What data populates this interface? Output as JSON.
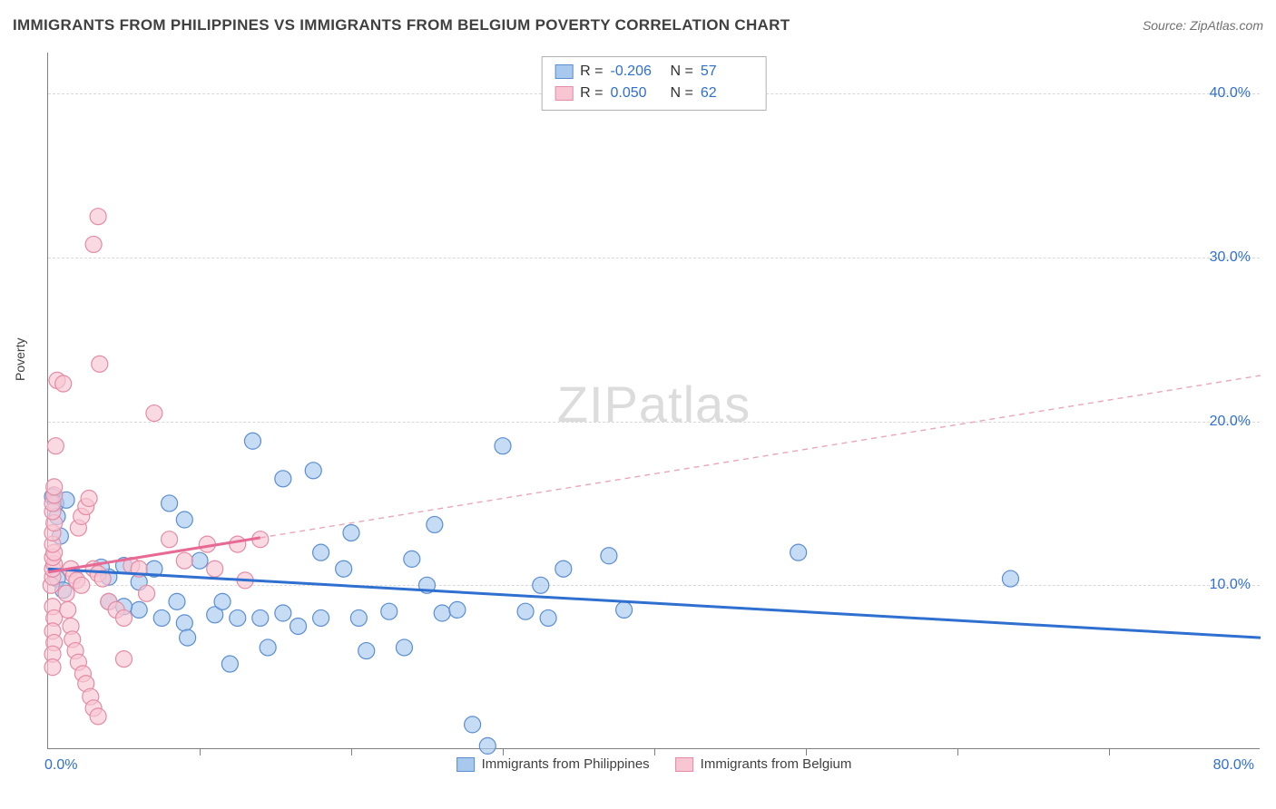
{
  "title": "IMMIGRANTS FROM PHILIPPINES VS IMMIGRANTS FROM BELGIUM POVERTY CORRELATION CHART",
  "source": "Source: ZipAtlas.com",
  "ylabel": "Poverty",
  "watermark_a": "ZIP",
  "watermark_b": "atlas",
  "chart": {
    "type": "scatter",
    "xlim": [
      0,
      80
    ],
    "ylim": [
      0,
      42.5
    ],
    "x_tick_step": 10,
    "y_tick_step": 10,
    "y_tick_min": 10,
    "y_tick_max": 40,
    "xmin_label": "0.0%",
    "xmax_label": "80.0%",
    "marker_radius": 9,
    "background_color": "#ffffff",
    "grid_color": "#d8d8d8",
    "axis_color": "#808080",
    "text_color": "#404040",
    "accent_color": "#2f6fd0",
    "series": [
      {
        "name": "Immigrants from Philippines",
        "color_fill": "#a8c8ee",
        "color_stroke": "#5b8ed1",
        "R": "-0.206",
        "N": "57",
        "trend": {
          "x1": 0,
          "y1": 11.0,
          "x2": 80,
          "y2": 6.8,
          "solid_to_x": 80
        },
        "points": [
          [
            0.3,
            15.4
          ],
          [
            0.5,
            15.0
          ],
          [
            0.6,
            14.2
          ],
          [
            0.8,
            13.0
          ],
          [
            0.6,
            10.4
          ],
          [
            1.0,
            9.7
          ],
          [
            1.2,
            15.2
          ],
          [
            13.5,
            18.8
          ],
          [
            15.5,
            16.5
          ],
          [
            17.5,
            17.0
          ],
          [
            8.0,
            15.0
          ],
          [
            9.0,
            14.0
          ],
          [
            10.0,
            11.5
          ],
          [
            4.0,
            10.5
          ],
          [
            5.0,
            11.2
          ],
          [
            6.0,
            10.2
          ],
          [
            7.0,
            11.0
          ],
          [
            3.5,
            11.1
          ],
          [
            8.5,
            9.0
          ],
          [
            9.0,
            7.7
          ],
          [
            9.2,
            6.8
          ],
          [
            11.0,
            8.2
          ],
          [
            11.5,
            9.0
          ],
          [
            12.5,
            8.0
          ],
          [
            14.0,
            8.0
          ],
          [
            14.5,
            6.2
          ],
          [
            15.5,
            8.3
          ],
          [
            16.5,
            7.5
          ],
          [
            18.0,
            8.0
          ],
          [
            18.0,
            12.0
          ],
          [
            19.5,
            11.0
          ],
          [
            20.0,
            13.2
          ],
          [
            20.5,
            8.0
          ],
          [
            21.0,
            6.0
          ],
          [
            22.5,
            8.4
          ],
          [
            23.5,
            6.2
          ],
          [
            24.0,
            11.6
          ],
          [
            25.0,
            10.0
          ],
          [
            25.5,
            13.7
          ],
          [
            26.0,
            8.3
          ],
          [
            27.0,
            8.5
          ],
          [
            28.0,
            1.5
          ],
          [
            29.0,
            0.2
          ],
          [
            30.0,
            18.5
          ],
          [
            31.5,
            8.4
          ],
          [
            32.5,
            10.0
          ],
          [
            33.0,
            8.0
          ],
          [
            34.0,
            11.0
          ],
          [
            37.0,
            11.8
          ],
          [
            38.0,
            8.5
          ],
          [
            49.5,
            12.0
          ],
          [
            63.5,
            10.4
          ],
          [
            12.0,
            5.2
          ],
          [
            7.5,
            8.0
          ],
          [
            6.0,
            8.5
          ],
          [
            5.0,
            8.7
          ],
          [
            4.0,
            9.0
          ]
        ]
      },
      {
        "name": "Immigrants from Belgium",
        "color_fill": "#f7c6d2",
        "color_stroke": "#e48ba5",
        "R": "0.050",
        "N": "62",
        "trend": {
          "x1": 0,
          "y1": 10.8,
          "x2": 80,
          "y2": 22.8,
          "solid_to_x": 14
        },
        "points": [
          [
            0.2,
            10.0
          ],
          [
            0.3,
            10.5
          ],
          [
            0.3,
            11.0
          ],
          [
            0.4,
            11.3
          ],
          [
            0.3,
            11.7
          ],
          [
            0.4,
            12.0
          ],
          [
            0.3,
            12.5
          ],
          [
            0.3,
            13.2
          ],
          [
            0.4,
            13.8
          ],
          [
            0.3,
            14.5
          ],
          [
            0.3,
            15.0
          ],
          [
            0.4,
            15.5
          ],
          [
            0.4,
            16.0
          ],
          [
            0.3,
            8.7
          ],
          [
            0.4,
            8.0
          ],
          [
            0.3,
            7.2
          ],
          [
            0.4,
            6.5
          ],
          [
            0.3,
            5.8
          ],
          [
            0.3,
            5.0
          ],
          [
            0.5,
            18.5
          ],
          [
            0.6,
            22.5
          ],
          [
            1.0,
            22.3
          ],
          [
            3.0,
            30.8
          ],
          [
            3.3,
            32.5
          ],
          [
            3.4,
            23.5
          ],
          [
            1.2,
            9.5
          ],
          [
            1.3,
            8.5
          ],
          [
            1.5,
            7.5
          ],
          [
            1.6,
            6.7
          ],
          [
            1.8,
            6.0
          ],
          [
            2.0,
            5.3
          ],
          [
            2.3,
            4.6
          ],
          [
            2.5,
            4.0
          ],
          [
            2.8,
            3.2
          ],
          [
            3.0,
            2.5
          ],
          [
            3.3,
            2.0
          ],
          [
            1.5,
            11.0
          ],
          [
            1.7,
            10.6
          ],
          [
            1.9,
            10.3
          ],
          [
            2.2,
            10.0
          ],
          [
            2.0,
            13.5
          ],
          [
            2.2,
            14.2
          ],
          [
            2.5,
            14.8
          ],
          [
            2.7,
            15.3
          ],
          [
            3.0,
            11.0
          ],
          [
            3.3,
            10.7
          ],
          [
            3.6,
            10.4
          ],
          [
            4.0,
            9.0
          ],
          [
            4.5,
            8.5
          ],
          [
            5.0,
            8.0
          ],
          [
            5.0,
            5.5
          ],
          [
            5.5,
            11.2
          ],
          [
            6.0,
            11.0
          ],
          [
            6.5,
            9.5
          ],
          [
            7.0,
            20.5
          ],
          [
            8.0,
            12.8
          ],
          [
            9.0,
            11.5
          ],
          [
            10.5,
            12.5
          ],
          [
            11.0,
            11.0
          ],
          [
            12.5,
            12.5
          ],
          [
            13.0,
            10.3
          ],
          [
            14.0,
            12.8
          ]
        ]
      }
    ]
  },
  "legend_bottom": [
    {
      "swatch": "blue",
      "label": "Immigrants from Philippines"
    },
    {
      "swatch": "pink",
      "label": "Immigrants from Belgium"
    }
  ]
}
